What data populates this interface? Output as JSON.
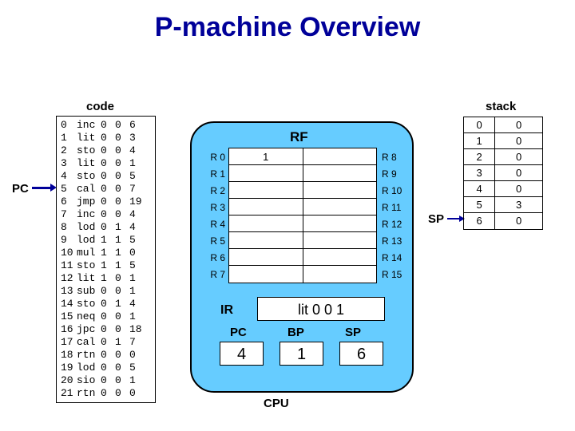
{
  "title": "P-machine Overview",
  "labels": {
    "code": "code",
    "stack": "stack",
    "pc": "PC",
    "sp": "SP",
    "rf": "RF",
    "cpu": "CPU",
    "ir": "IR",
    "pc_reg": "PC",
    "bp_reg": "BP",
    "sp_reg": "SP"
  },
  "code": [
    [
      "0",
      "inc",
      "0",
      "0",
      "6"
    ],
    [
      "1",
      "lit",
      "0",
      "0",
      "3"
    ],
    [
      "2",
      "sto",
      "0",
      "0",
      "4"
    ],
    [
      "3",
      "lit",
      "0",
      "0",
      "1"
    ],
    [
      "4",
      "sto",
      "0",
      "0",
      "5"
    ],
    [
      "5",
      "cal",
      "0",
      "0",
      "7"
    ],
    [
      "6",
      "jmp",
      "0",
      "0",
      "19"
    ],
    [
      "7",
      "inc",
      "0",
      "0",
      "4"
    ],
    [
      "8",
      "lod",
      "0",
      "1",
      "4"
    ],
    [
      "9",
      "lod",
      "1",
      "1",
      "5"
    ],
    [
      "10",
      "mul",
      "1",
      "1",
      "0"
    ],
    [
      "11",
      "sto",
      "1",
      "1",
      "5"
    ],
    [
      "12",
      "lit",
      "1",
      "0",
      "1"
    ],
    [
      "13",
      "sub",
      "0",
      "0",
      "1"
    ],
    [
      "14",
      "sto",
      "0",
      "1",
      "4"
    ],
    [
      "15",
      "neq",
      "0",
      "0",
      "1"
    ],
    [
      "16",
      "jpc",
      "0",
      "0",
      "18"
    ],
    [
      "17",
      "cal",
      "0",
      "1",
      "7"
    ],
    [
      "18",
      "rtn",
      "0",
      "0",
      "0"
    ],
    [
      "19",
      "lod",
      "0",
      "0",
      "5"
    ],
    [
      "20",
      "sio",
      "0",
      "0",
      "1"
    ],
    [
      "21",
      "rtn",
      "0",
      "0",
      "0"
    ]
  ],
  "rf": {
    "rows": [
      {
        "l": "R 0",
        "lv": "1",
        "r": "R 8",
        "rv": ""
      },
      {
        "l": "R 1",
        "lv": "",
        "r": "R 9",
        "rv": ""
      },
      {
        "l": "R 2",
        "lv": "",
        "r": "R 10",
        "rv": ""
      },
      {
        "l": "R 3",
        "lv": "",
        "r": "R 11",
        "rv": ""
      },
      {
        "l": "R 4",
        "lv": "",
        "r": "R 12",
        "rv": ""
      },
      {
        "l": "R 5",
        "lv": "",
        "r": "R 13",
        "rv": ""
      },
      {
        "l": "R 6",
        "lv": "",
        "r": "R 14",
        "rv": ""
      },
      {
        "l": "R 7",
        "lv": "",
        "r": "R 15",
        "rv": ""
      }
    ]
  },
  "ir_value": "lit 0 0 1",
  "pc_value": "4",
  "bp_value": "1",
  "sp_value": "6",
  "stack": [
    {
      "i": "0",
      "v": "0"
    },
    {
      "i": "1",
      "v": "0"
    },
    {
      "i": "2",
      "v": "0"
    },
    {
      "i": "3",
      "v": "0"
    },
    {
      "i": "4",
      "v": "0"
    },
    {
      "i": "5",
      "v": "3"
    },
    {
      "i": "6",
      "v": "0"
    }
  ],
  "colors": {
    "title": "#000099",
    "cpu_bg": "#66ccff",
    "arrow": "#000099"
  }
}
